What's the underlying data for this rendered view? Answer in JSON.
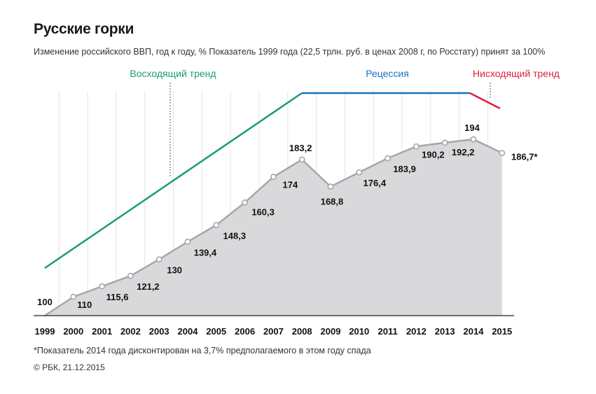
{
  "title": "Русские горки",
  "subtitle": "Изменение российского ВВП, год к году, %  Показатель 1999 года (22,5 трлн. руб. в ценах 2008 г, по Росстату) принят за 100%",
  "footnote": "*Показатель 2014 года дисконтирован на 3,7% предполагаемого в этом году спада",
  "credit": "© РБК, 21.12.2015",
  "colors": {
    "area": "#d9d9dc",
    "line": "#a6a6ab",
    "up_trend": "#1a9a7a",
    "recession": "#1e6fc0",
    "down_trend": "#d9233a"
  },
  "chart_data": {
    "type": "area",
    "x": [
      1999,
      2000,
      2001,
      2002,
      2003,
      2004,
      2005,
      2006,
      2007,
      2008,
      2009,
      2010,
      2011,
      2012,
      2013,
      2014,
      2015
    ],
    "values": [
      100,
      110,
      115.6,
      121.2,
      130,
      139.4,
      148.3,
      160.3,
      174,
      183.2,
      168.8,
      176.4,
      183.9,
      190.2,
      192.2,
      194,
      186.7
    ],
    "value_labels": [
      "100",
      "110",
      "115,6",
      "121,2",
      "130",
      "139,4",
      "148,3",
      "160,3",
      "174",
      "183,2",
      "168,8",
      "176,4",
      "183,9",
      "190,2",
      "192,2",
      "194",
      "186,7*"
    ],
    "tick_labels": [
      "1999",
      "2000",
      "2001",
      "2002",
      "2003",
      "2004",
      "2005",
      "2006",
      "2007",
      "2008",
      "2009",
      "2010",
      "2011",
      "2012",
      "2013",
      "2014",
      "2015"
    ],
    "trends": [
      {
        "label": "Восходящий тренд",
        "from": 1999,
        "to": 2008,
        "color": "#1a9a7a"
      },
      {
        "label": "Рецессия",
        "from": 2008,
        "to": 2014,
        "color": "#1e6fc0"
      },
      {
        "label": "Нисходящий тренд",
        "from": 2014,
        "to": 2015,
        "color": "#d9233a"
      }
    ],
    "grid": true,
    "xlabel": "",
    "ylabel": ""
  }
}
